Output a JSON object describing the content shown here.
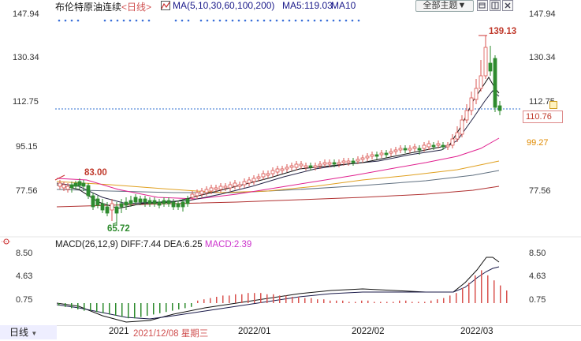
{
  "header": {
    "instrument": "布伦特原油连续",
    "period": "<日线>",
    "ma_params": "MA(5,10,30,60,100,200)",
    "ma5": "MA5:119.03",
    "ma10": "MA10",
    "theme_button": "全部主题▼"
  },
  "price_axis": {
    "ticks": [
      "147.94",
      "130.34",
      "112.75",
      "95.15",
      "77.56"
    ],
    "last_price": "110.76",
    "side_value": "99.27"
  },
  "annotations": {
    "high": "139.13",
    "left_high": "83.00",
    "low": "65.72"
  },
  "macd": {
    "label": "MACD(26,12,9)",
    "diff": "DIFF:7.44",
    "dea": "DEA:6.25",
    "macd": "MACD:2.39",
    "ticks": [
      "8.50",
      "4.63",
      "0.75"
    ]
  },
  "date_bar": {
    "tab": "日线",
    "year": "2021",
    "cross_date": "2021/12/08 星期三",
    "m1": "2022/01",
    "m2": "2022/02",
    "m3": "2022/03"
  },
  "colors": {
    "up": "#d9534f",
    "down": "#2e8b2e",
    "ma5": "#111111",
    "ma10": "#222244",
    "ma30": "#e0208f",
    "ma60": "#e0a020",
    "ma100": "#607080",
    "ma200": "#b03030"
  },
  "icons": [
    "ma-chart-icon",
    "window-restore-icon",
    "window-layout-icon",
    "window-close-icon"
  ]
}
